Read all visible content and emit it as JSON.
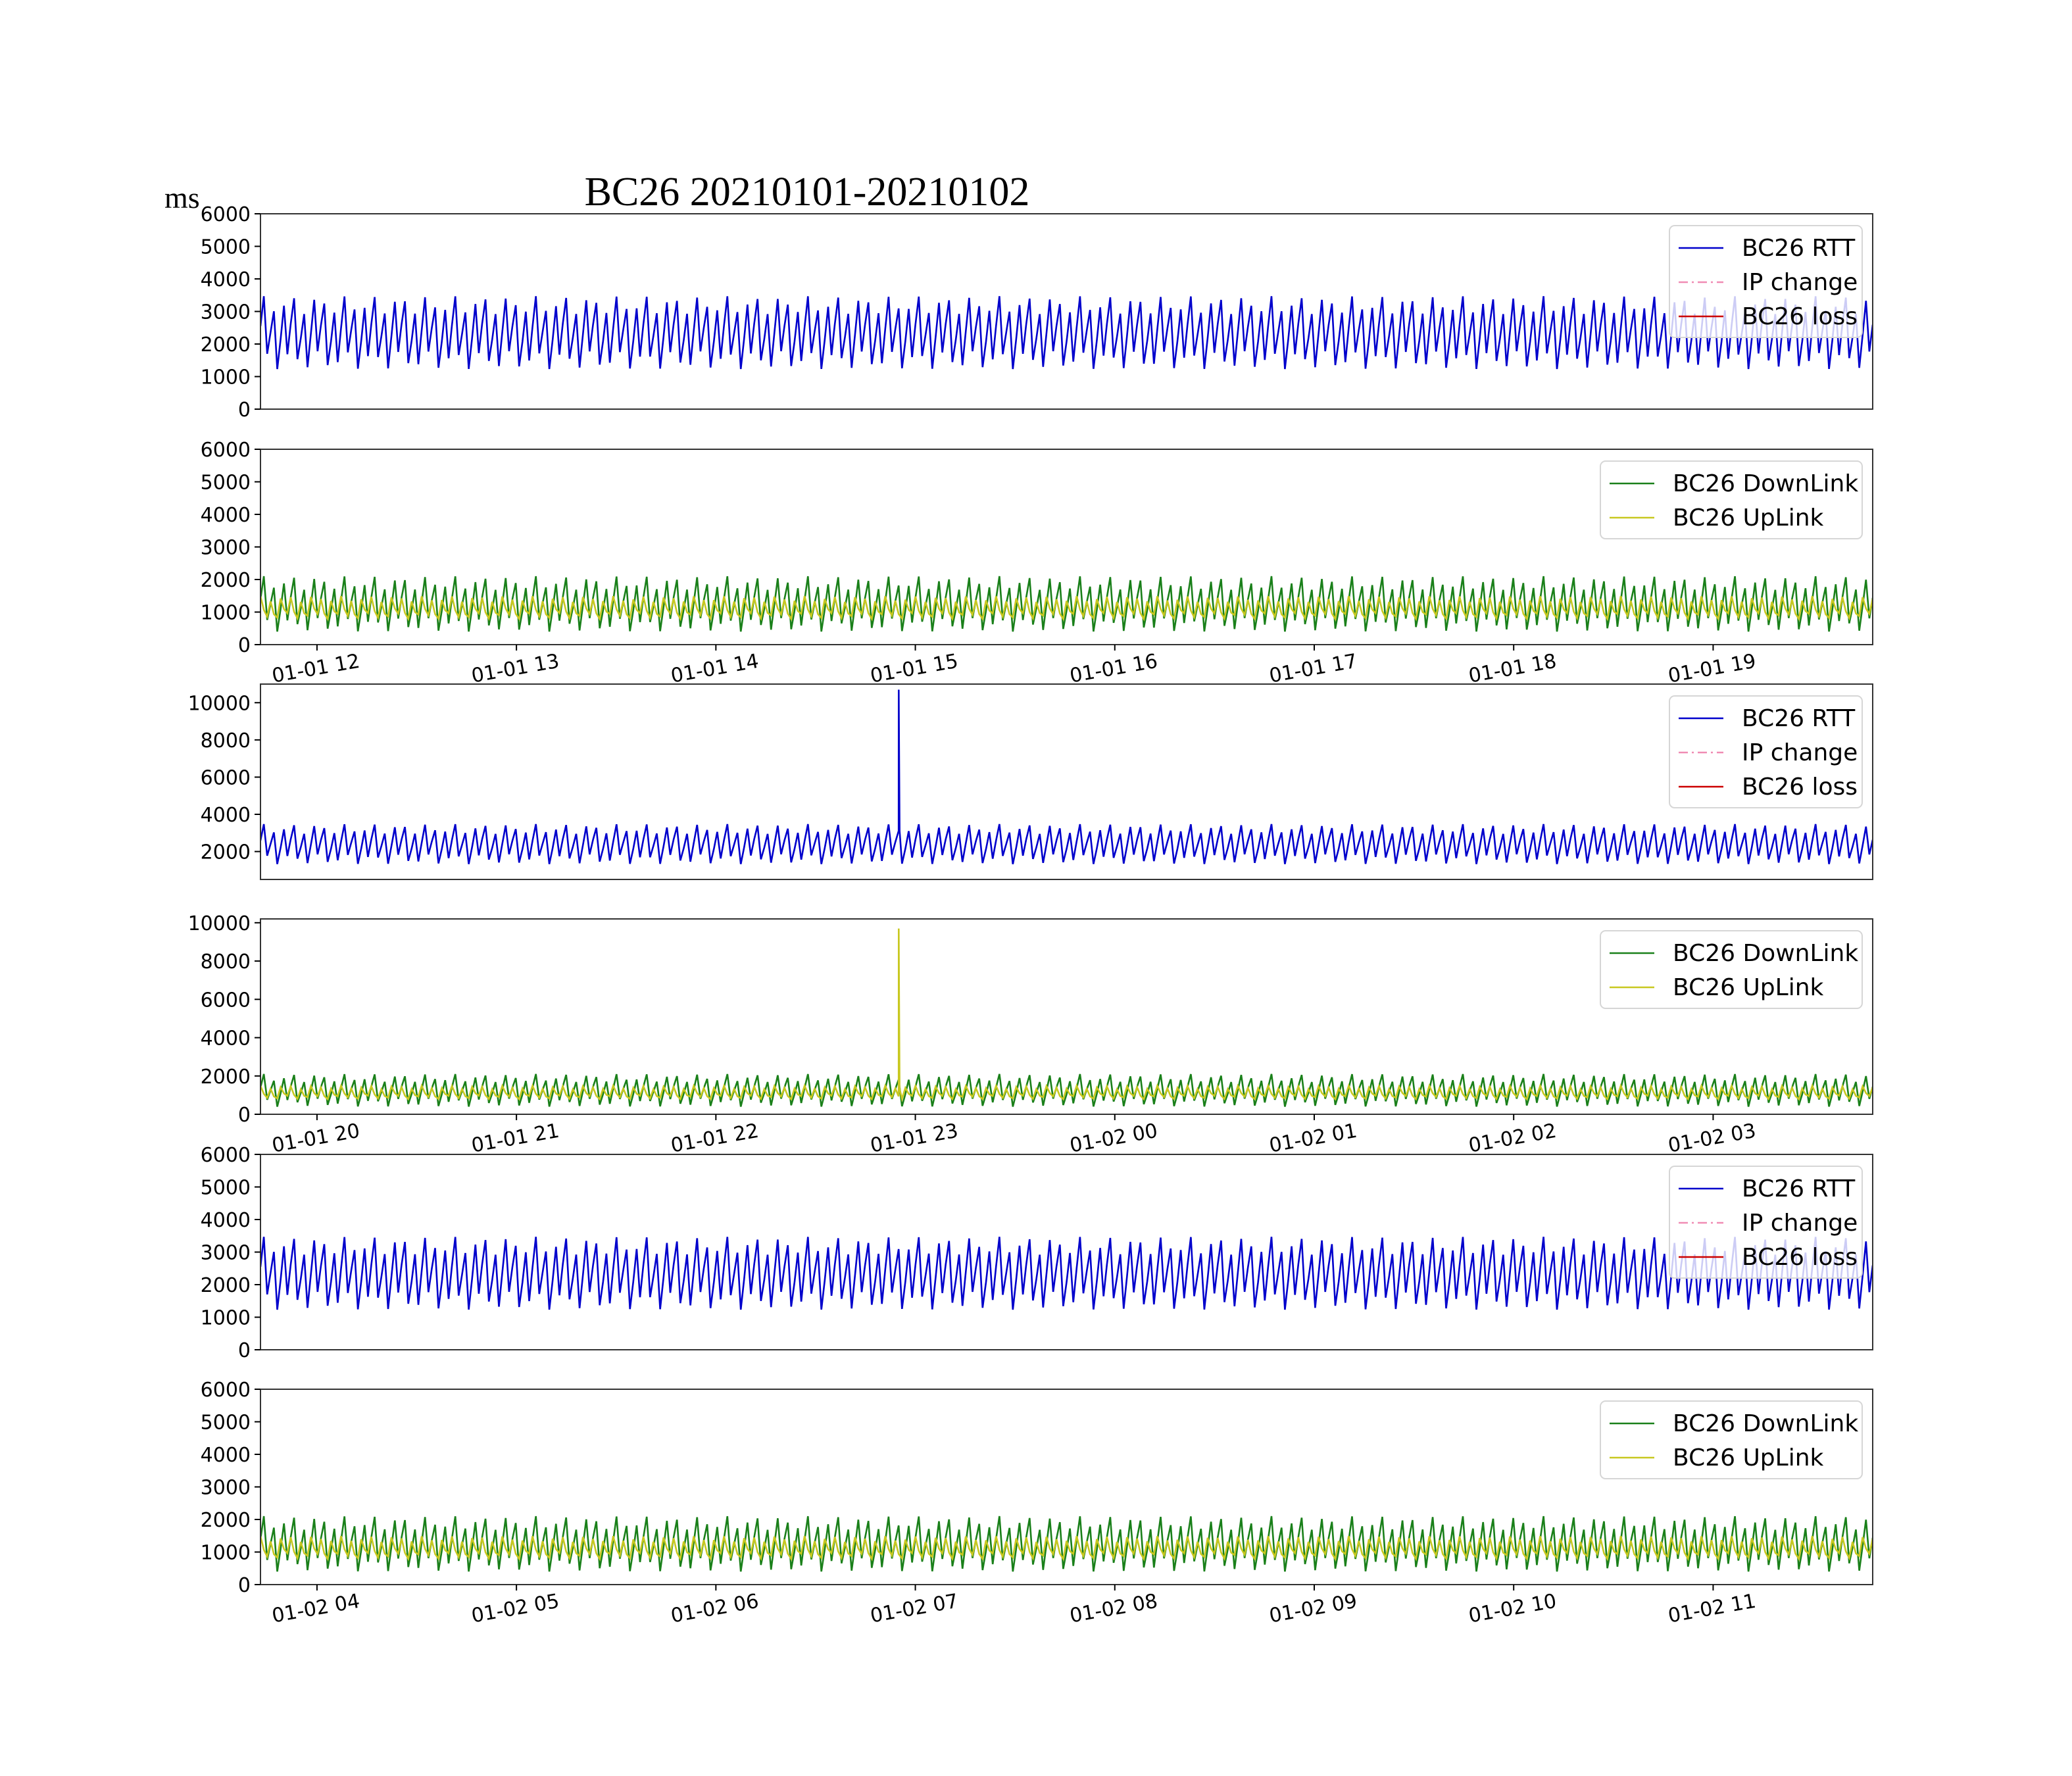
{
  "figure": {
    "title": "BC26 20210101-20210102",
    "unit_label": "ms"
  },
  "chart_data": [
    {
      "type": "line",
      "panel": 1,
      "x_range": [
        "2021-01-01 11:43",
        "2021-01-01 19:48"
      ],
      "ylim": [
        0,
        6000
      ],
      "yticks": [
        0,
        1000,
        2000,
        3000,
        4000,
        5000,
        6000
      ],
      "xtick_labels": [],
      "legend": {
        "placement": "top-right",
        "entries": [
          "BC26 RTT",
          "IP change",
          "BC26 loss"
        ]
      },
      "series": [
        {
          "name": "BC26 RTT",
          "color": "#0000cc",
          "style": "solid",
          "oscillation": {
            "min": 1100,
            "max": 3600,
            "cycles": 160
          }
        },
        {
          "name": "IP change",
          "color": "#f08cb4",
          "style": "dashdot",
          "values": []
        },
        {
          "name": "BC26 loss",
          "color": "#cc0000",
          "style": "solid",
          "values": []
        }
      ]
    },
    {
      "type": "line",
      "panel": 2,
      "x_range": [
        "2021-01-01 11:43",
        "2021-01-01 19:48"
      ],
      "ylim": [
        0,
        6000
      ],
      "yticks": [
        0,
        1000,
        2000,
        3000,
        4000,
        5000,
        6000
      ],
      "xticks": [
        "2021-01-01 12:00",
        "2021-01-01 13:00",
        "2021-01-01 14:00",
        "2021-01-01 15:00",
        "2021-01-01 16:00",
        "2021-01-01 17:00",
        "2021-01-01 18:00",
        "2021-01-01 19:00"
      ],
      "xtick_labels": [
        "01-01 12",
        "01-01 13",
        "01-01 14",
        "01-01 15",
        "01-01 16",
        "01-01 17",
        "01-01 18",
        "01-01 19"
      ],
      "legend": {
        "placement": "top-right",
        "entries": [
          "BC26 DownLink",
          "BC26 UpLink"
        ]
      },
      "series": [
        {
          "name": "BC26 DownLink",
          "color": "#1a801a",
          "style": "solid",
          "oscillation": {
            "min": 300,
            "max": 2200,
            "cycles": 160
          }
        },
        {
          "name": "BC26 UpLink",
          "color": "#c8c820",
          "style": "solid",
          "oscillation": {
            "min": 700,
            "max": 1500,
            "cycles": 160
          }
        }
      ]
    },
    {
      "type": "line",
      "panel": 3,
      "x_range": [
        "2021-01-01 19:43",
        "2021-01-02 03:48"
      ],
      "ylim": [
        500,
        11000
      ],
      "yticks": [
        2000,
        4000,
        6000,
        8000,
        10000
      ],
      "xtick_labels": [],
      "legend": {
        "placement": "top-right",
        "entries": [
          "BC26 RTT",
          "IP change",
          "BC26 loss"
        ]
      },
      "series": [
        {
          "name": "BC26 RTT",
          "color": "#0000cc",
          "style": "solid",
          "oscillation": {
            "min": 1200,
            "max": 3600,
            "cycles": 160
          },
          "spike": {
            "x": "2021-01-01 22:55",
            "value": 10700
          }
        },
        {
          "name": "IP change",
          "color": "#f08cb4",
          "style": "dashdot",
          "values": []
        },
        {
          "name": "BC26 loss",
          "color": "#cc0000",
          "style": "solid",
          "values": []
        }
      ]
    },
    {
      "type": "line",
      "panel": 4,
      "x_range": [
        "2021-01-01 19:43",
        "2021-01-02 03:48"
      ],
      "ylim": [
        0,
        10200
      ],
      "yticks": [
        0,
        2000,
        4000,
        6000,
        8000,
        10000
      ],
      "xticks": [
        "2021-01-01 20:00",
        "2021-01-01 21:00",
        "2021-01-01 22:00",
        "2021-01-01 23:00",
        "2021-01-02 00:00",
        "2021-01-02 01:00",
        "2021-01-02 02:00",
        "2021-01-02 03:00"
      ],
      "xtick_labels": [
        "01-01 20",
        "01-01 21",
        "01-01 22",
        "01-01 23",
        "01-02 00",
        "01-02 01",
        "01-02 02",
        "01-02 03"
      ],
      "legend": {
        "placement": "top-right",
        "entries": [
          "BC26 DownLink",
          "BC26 UpLink"
        ]
      },
      "series": [
        {
          "name": "BC26 DownLink",
          "color": "#1a801a",
          "style": "solid",
          "oscillation": {
            "min": 300,
            "max": 2200,
            "cycles": 160
          }
        },
        {
          "name": "BC26 UpLink",
          "color": "#c8c820",
          "style": "solid",
          "oscillation": {
            "min": 700,
            "max": 1500,
            "cycles": 160
          },
          "spike": {
            "x": "2021-01-01 22:55",
            "value": 9700
          }
        }
      ]
    },
    {
      "type": "line",
      "panel": 5,
      "x_range": [
        "2021-01-02 03:43",
        "2021-01-02 11:48"
      ],
      "ylim": [
        0,
        6000
      ],
      "yticks": [
        0,
        1000,
        2000,
        3000,
        4000,
        5000,
        6000
      ],
      "xtick_labels": [],
      "legend": {
        "placement": "top-right",
        "entries": [
          "BC26 RTT",
          "IP change",
          "BC26 loss"
        ]
      },
      "series": [
        {
          "name": "BC26 RTT",
          "color": "#0000cc",
          "style": "solid",
          "oscillation": {
            "min": 1100,
            "max": 3600,
            "cycles": 160
          }
        },
        {
          "name": "IP change",
          "color": "#f08cb4",
          "style": "dashdot",
          "values": []
        },
        {
          "name": "BC26 loss",
          "color": "#cc0000",
          "style": "solid",
          "values": []
        }
      ]
    },
    {
      "type": "line",
      "panel": 6,
      "x_range": [
        "2021-01-02 03:43",
        "2021-01-02 11:48"
      ],
      "ylim": [
        0,
        6000
      ],
      "yticks": [
        0,
        1000,
        2000,
        3000,
        4000,
        5000,
        6000
      ],
      "xticks": [
        "2021-01-02 04:00",
        "2021-01-02 05:00",
        "2021-01-02 06:00",
        "2021-01-02 07:00",
        "2021-01-02 08:00",
        "2021-01-02 09:00",
        "2021-01-02 10:00",
        "2021-01-02 11:00"
      ],
      "xtick_labels": [
        "01-02 04",
        "01-02 05",
        "01-02 06",
        "01-02 07",
        "01-02 08",
        "01-02 09",
        "01-02 10",
        "01-02 11"
      ],
      "legend": {
        "placement": "top-right",
        "entries": [
          "BC26 DownLink",
          "BC26 UpLink"
        ]
      },
      "series": [
        {
          "name": "BC26 DownLink",
          "color": "#1a801a",
          "style": "solid",
          "oscillation": {
            "min": 300,
            "max": 2200,
            "cycles": 160
          }
        },
        {
          "name": "BC26 UpLink",
          "color": "#c8c820",
          "style": "solid",
          "oscillation": {
            "min": 700,
            "max": 1500,
            "cycles": 160
          }
        }
      ]
    }
  ]
}
